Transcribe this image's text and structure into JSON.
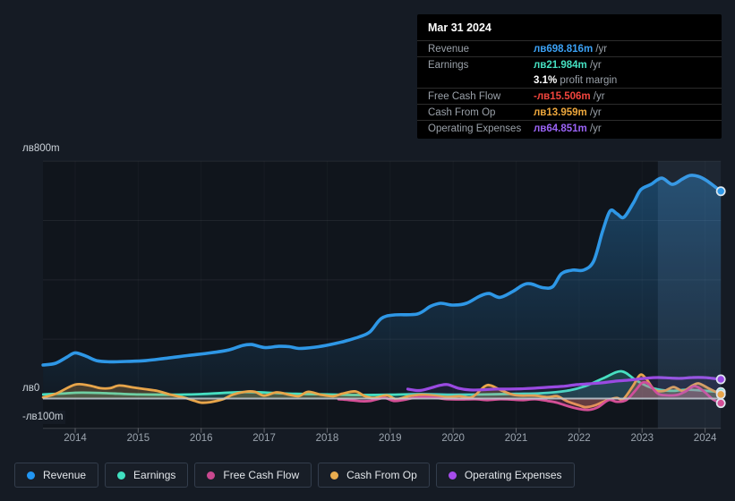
{
  "page": {
    "background": "#151b24"
  },
  "axis": {
    "y_top": "лв800m",
    "y_zero": "лв0",
    "y_bottom": "-лв100m"
  },
  "tooltip": {
    "title": "Mar 31 2024",
    "revenue": {
      "label": "Revenue",
      "value": "лв698.816m",
      "suffix": " /yr",
      "color": "#3ba1f5"
    },
    "earnings": {
      "label": "Earnings",
      "value": "лв21.984m",
      "suffix": " /yr",
      "color": "#45e0c1"
    },
    "margin": {
      "value": "3.1%",
      "label": " profit margin"
    },
    "fcf": {
      "label": "Free Cash Flow",
      "value": "-лв15.506m",
      "suffix": " /yr",
      "color": "#f2453d"
    },
    "cashop": {
      "label": "Cash From Op",
      "value": "лв13.959m",
      "suffix": " /yr",
      "color": "#eda73c"
    },
    "opex": {
      "label": "Operating Expenses",
      "value": "лв64.851m",
      "suffix": " /yr",
      "color": "#9a63f5"
    }
  },
  "legend": {
    "items": [
      {
        "label": "Revenue",
        "color": "#2196f3"
      },
      {
        "label": "Earnings",
        "color": "#40e0c0"
      },
      {
        "label": "Free Cash Flow",
        "color": "#c9488f"
      },
      {
        "label": "Cash From Op",
        "color": "#e9ad4f"
      },
      {
        "label": "Operating Expenses",
        "color": "#a64ceb"
      }
    ]
  },
  "chart_data": {
    "type": "area",
    "title": "Company financial history (BGN millions per year)",
    "currency_prefix": "лв",
    "x_ticks": [
      2014,
      2015,
      2016,
      2017,
      2018,
      2019,
      2020,
      2021,
      2022,
      2023,
      2024
    ],
    "ylim": [
      -100,
      800
    ],
    "y_gridlines": [
      800,
      600,
      400,
      200
    ],
    "grid": true,
    "legend_position": "bottom",
    "highlight_band": {
      "from": 2023.25,
      "to": 2024.25
    },
    "series": [
      {
        "name": "Revenue",
        "color": "#2e97e6",
        "width": 3.6,
        "fill": "gradient",
        "data": [
          [
            2013.49,
            113
          ],
          [
            2013.69,
            119
          ],
          [
            2013.87,
            140
          ],
          [
            2014.0,
            154
          ],
          [
            2014.17,
            143
          ],
          [
            2014.34,
            128
          ],
          [
            2014.54,
            124
          ],
          [
            2014.82,
            125
          ],
          [
            2015.12,
            128
          ],
          [
            2015.45,
            136
          ],
          [
            2015.79,
            145
          ],
          [
            2016.15,
            154
          ],
          [
            2016.44,
            164
          ],
          [
            2016.66,
            179
          ],
          [
            2016.8,
            182
          ],
          [
            2017.01,
            172
          ],
          [
            2017.23,
            176
          ],
          [
            2017.4,
            175
          ],
          [
            2017.55,
            169
          ],
          [
            2017.8,
            173
          ],
          [
            2018.05,
            182
          ],
          [
            2018.29,
            194
          ],
          [
            2018.51,
            208
          ],
          [
            2018.68,
            225
          ],
          [
            2018.86,
            270
          ],
          [
            2019.07,
            282
          ],
          [
            2019.43,
            285
          ],
          [
            2019.64,
            311
          ],
          [
            2019.8,
            321
          ],
          [
            2020.0,
            315
          ],
          [
            2020.21,
            321
          ],
          [
            2020.42,
            345
          ],
          [
            2020.57,
            354
          ],
          [
            2020.74,
            341
          ],
          [
            2020.94,
            360
          ],
          [
            2021.11,
            383
          ],
          [
            2021.23,
            387
          ],
          [
            2021.42,
            374
          ],
          [
            2021.58,
            377
          ],
          [
            2021.72,
            421
          ],
          [
            2021.9,
            433
          ],
          [
            2022.07,
            433
          ],
          [
            2022.23,
            463
          ],
          [
            2022.37,
            562
          ],
          [
            2022.49,
            632
          ],
          [
            2022.6,
            623
          ],
          [
            2022.71,
            611
          ],
          [
            2022.86,
            659
          ],
          [
            2022.98,
            704
          ],
          [
            2023.14,
            722
          ],
          [
            2023.31,
            743
          ],
          [
            2023.48,
            722
          ],
          [
            2023.64,
            740
          ],
          [
            2023.76,
            752
          ],
          [
            2023.89,
            749
          ],
          [
            2024.03,
            734
          ],
          [
            2024.25,
            698.816
          ]
        ]
      },
      {
        "name": "Earnings",
        "color": "#47dfc1",
        "width": 2.8,
        "fill": "solid",
        "fill_opacity": 0.2,
        "data": [
          [
            2013.49,
            14
          ],
          [
            2013.8,
            17
          ],
          [
            2014.1,
            20
          ],
          [
            2014.5,
            18
          ],
          [
            2015.0,
            14
          ],
          [
            2015.5,
            13
          ],
          [
            2016.0,
            15
          ],
          [
            2016.35,
            19
          ],
          [
            2016.7,
            22
          ],
          [
            2017.05,
            20
          ],
          [
            2017.5,
            16
          ],
          [
            2018.0,
            14
          ],
          [
            2018.5,
            12
          ],
          [
            2019.0,
            13
          ],
          [
            2019.5,
            15
          ],
          [
            2020.0,
            13
          ],
          [
            2020.5,
            14
          ],
          [
            2021.0,
            16
          ],
          [
            2021.4,
            18
          ],
          [
            2021.8,
            26
          ],
          [
            2022.1,
            42
          ],
          [
            2022.4,
            70
          ],
          [
            2022.67,
            92
          ],
          [
            2022.9,
            62
          ],
          [
            2023.1,
            40
          ],
          [
            2023.3,
            29
          ],
          [
            2023.5,
            26
          ],
          [
            2023.7,
            30
          ],
          [
            2023.95,
            27
          ],
          [
            2024.25,
            21.984
          ]
        ]
      },
      {
        "name": "Cash From Op",
        "color": "#e8a54a",
        "width": 2.8,
        "fill": "solid",
        "fill_opacity": 0.25,
        "data": [
          [
            2013.49,
            4
          ],
          [
            2013.7,
            17
          ],
          [
            2014.0,
            47
          ],
          [
            2014.22,
            44
          ],
          [
            2014.4,
            35
          ],
          [
            2014.55,
            35
          ],
          [
            2014.7,
            44
          ],
          [
            2014.9,
            38
          ],
          [
            2015.1,
            32
          ],
          [
            2015.3,
            26
          ],
          [
            2015.5,
            14
          ],
          [
            2015.75,
            2
          ],
          [
            2015.9,
            -8
          ],
          [
            2016.0,
            -14
          ],
          [
            2016.15,
            -12
          ],
          [
            2016.35,
            -2
          ],
          [
            2016.5,
            13
          ],
          [
            2016.7,
            23
          ],
          [
            2016.85,
            23
          ],
          [
            2017.0,
            10
          ],
          [
            2017.2,
            21
          ],
          [
            2017.4,
            13
          ],
          [
            2017.55,
            8
          ],
          [
            2017.7,
            23
          ],
          [
            2017.9,
            13
          ],
          [
            2018.1,
            8
          ],
          [
            2018.25,
            17
          ],
          [
            2018.45,
            24
          ],
          [
            2018.6,
            8
          ],
          [
            2018.75,
            2
          ],
          [
            2018.95,
            11
          ],
          [
            2019.1,
            -2
          ],
          [
            2019.3,
            8
          ],
          [
            2019.5,
            13
          ],
          [
            2019.7,
            10
          ],
          [
            2019.9,
            5
          ],
          [
            2020.1,
            8
          ],
          [
            2020.3,
            5
          ],
          [
            2020.5,
            41
          ],
          [
            2020.6,
            44
          ],
          [
            2020.75,
            29
          ],
          [
            2020.95,
            13
          ],
          [
            2021.1,
            10
          ],
          [
            2021.3,
            10
          ],
          [
            2021.5,
            5
          ],
          [
            2021.65,
            8
          ],
          [
            2021.8,
            -8
          ],
          [
            2022.0,
            -23
          ],
          [
            2022.1,
            -29
          ],
          [
            2022.25,
            -23
          ],
          [
            2022.45,
            -5
          ],
          [
            2022.6,
            2
          ],
          [
            2022.7,
            -2
          ],
          [
            2022.85,
            41
          ],
          [
            2022.97,
            80
          ],
          [
            2023.07,
            65
          ],
          [
            2023.2,
            29
          ],
          [
            2023.35,
            26
          ],
          [
            2023.5,
            39
          ],
          [
            2023.65,
            26
          ],
          [
            2023.8,
            44
          ],
          [
            2023.9,
            51
          ],
          [
            2024.05,
            35
          ],
          [
            2024.18,
            21
          ],
          [
            2024.25,
            13.959
          ]
        ]
      },
      {
        "name": "Free Cash Flow",
        "color": "#d44f96",
        "width": 2.8,
        "fill": "solid",
        "fill_opacity": 0.22,
        "data": [
          [
            2018.18,
            -2
          ],
          [
            2018.35,
            -5
          ],
          [
            2018.55,
            -9
          ],
          [
            2018.68,
            -8
          ],
          [
            2018.8,
            -2
          ],
          [
            2018.92,
            2
          ],
          [
            2019.06,
            -8
          ],
          [
            2019.2,
            -5
          ],
          [
            2019.4,
            3
          ],
          [
            2019.56,
            5
          ],
          [
            2019.74,
            2
          ],
          [
            2019.9,
            -2
          ],
          [
            2020.1,
            -3
          ],
          [
            2020.35,
            -2
          ],
          [
            2020.55,
            -5
          ],
          [
            2020.75,
            -2
          ],
          [
            2020.9,
            -3
          ],
          [
            2021.1,
            -5
          ],
          [
            2021.3,
            -2
          ],
          [
            2021.5,
            -8
          ],
          [
            2021.65,
            -14
          ],
          [
            2021.83,
            -26
          ],
          [
            2022.0,
            -35
          ],
          [
            2022.16,
            -38
          ],
          [
            2022.3,
            -29
          ],
          [
            2022.47,
            -5
          ],
          [
            2022.6,
            -11
          ],
          [
            2022.75,
            -5
          ],
          [
            2022.9,
            29
          ],
          [
            2023.0,
            53
          ],
          [
            2023.1,
            50
          ],
          [
            2023.25,
            17
          ],
          [
            2023.4,
            11
          ],
          [
            2023.55,
            12
          ],
          [
            2023.68,
            23
          ],
          [
            2023.83,
            42
          ],
          [
            2023.97,
            26
          ],
          [
            2024.12,
            -2
          ],
          [
            2024.25,
            -15.506
          ]
        ]
      },
      {
        "name": "Operating Expenses",
        "color": "#9a4ae2",
        "width": 3.2,
        "fill": "solid",
        "fill_opacity": 0.08,
        "data": [
          [
            2019.28,
            32
          ],
          [
            2019.46,
            27
          ],
          [
            2019.63,
            35
          ],
          [
            2019.8,
            45
          ],
          [
            2019.92,
            47
          ],
          [
            2020.08,
            35
          ],
          [
            2020.27,
            29
          ],
          [
            2020.48,
            30
          ],
          [
            2020.7,
            32
          ],
          [
            2020.9,
            32
          ],
          [
            2021.08,
            33
          ],
          [
            2021.3,
            35
          ],
          [
            2021.5,
            38
          ],
          [
            2021.73,
            41
          ],
          [
            2021.97,
            47
          ],
          [
            2022.18,
            50
          ],
          [
            2022.4,
            54
          ],
          [
            2022.6,
            59
          ],
          [
            2022.83,
            63
          ],
          [
            2023.04,
            68
          ],
          [
            2023.25,
            71
          ],
          [
            2023.46,
            69
          ],
          [
            2023.62,
            68
          ],
          [
            2023.8,
            71
          ],
          [
            2023.98,
            71
          ],
          [
            2024.12,
            68
          ],
          [
            2024.25,
            64.851
          ]
        ]
      }
    ]
  }
}
